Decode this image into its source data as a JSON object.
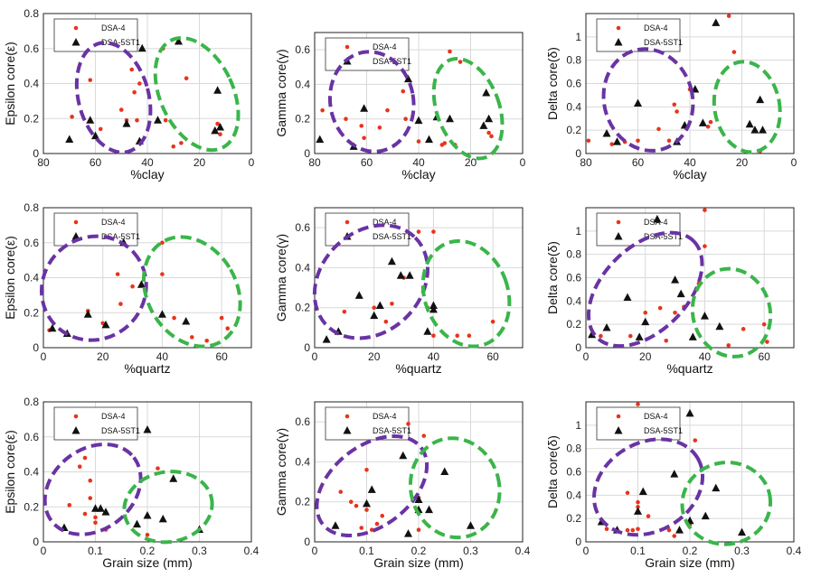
{
  "colors": {
    "series_a": "#e8341c",
    "series_b": "#111111",
    "ellipse_left": "#6a33a3",
    "ellipse_right": "#3ab54a",
    "grid": "#d9d9d9"
  },
  "legend": [
    "DSA-4",
    "DSA-5ST1"
  ],
  "chart_data": [
    {
      "type": "scatter",
      "panel": "1",
      "legend_position": "top-left",
      "xlabel": "%clay",
      "ylabel": "Epsilon core(ε)",
      "xlim": [
        80,
        0
      ],
      "ylim": [
        0,
        0.8
      ],
      "x_reversed": true,
      "xticks": [
        "80",
        "60",
        "40",
        "20",
        "0"
      ],
      "yticks": [
        "0",
        "0.2",
        "0.4",
        "0.6",
        "0.8"
      ],
      "series": [
        {
          "name": "DSA-4",
          "x": [
            69,
            62,
            58,
            50,
            48,
            46,
            45,
            44,
            43,
            34,
            33,
            30,
            27,
            25,
            13,
            12
          ],
          "y": [
            0.21,
            0.42,
            0.14,
            0.25,
            0.19,
            0.48,
            0.35,
            0.19,
            0.4,
            0.6,
            0.19,
            0.04,
            0.06,
            0.43,
            0.17,
            0.11
          ]
        },
        {
          "name": "DSA-5ST1",
          "x": [
            70,
            62,
            60,
            48,
            43,
            42,
            36,
            28,
            14,
            13,
            12
          ],
          "y": [
            0.08,
            0.19,
            0.1,
            0.17,
            0.07,
            0.6,
            0.19,
            0.64,
            0.13,
            0.36,
            0.15
          ]
        }
      ],
      "ellipses": [
        {
          "color": "purple",
          "cx": 53,
          "cy": 0.32,
          "rx": 13.5,
          "ry": 0.32,
          "angle_deg": -15
        },
        {
          "color": "green",
          "cx": 21,
          "cy": 0.34,
          "rx": 14,
          "ry": 0.34,
          "angle_deg": -25
        }
      ]
    },
    {
      "type": "scatter",
      "panel": "2",
      "legend_position": "top-left",
      "xlabel": "%clay",
      "ylabel": "Gamma core(γ)",
      "xlim": [
        80,
        0
      ],
      "ylim": [
        0,
        0.7
      ],
      "x_reversed": true,
      "xticks": [
        "80",
        "60",
        "40",
        "20",
        "0"
      ],
      "yticks": [
        "0",
        "0.2",
        "0.4",
        "0.6"
      ],
      "series": [
        {
          "name": "DSA-4",
          "x": [
            77,
            68,
            62,
            61,
            55,
            52,
            46,
            45,
            40,
            31,
            30,
            28,
            26,
            24,
            13,
            12
          ],
          "y": [
            0.25,
            0.2,
            0.16,
            0.09,
            0.15,
            0.25,
            0.36,
            0.2,
            0.07,
            0.05,
            0.06,
            0.59,
            0.05,
            0.53,
            0.12,
            0.1
          ]
        },
        {
          "name": "DSA-5ST1",
          "x": [
            78,
            65,
            61,
            44,
            40,
            36,
            33,
            28,
            15,
            14,
            13
          ],
          "y": [
            0.08,
            0.04,
            0.26,
            0.43,
            0.19,
            0.08,
            0.21,
            0.2,
            0.16,
            0.35,
            0.2
          ]
        }
      ],
      "ellipses": [
        {
          "color": "purple",
          "cx": 58,
          "cy": 0.3,
          "rx": 16,
          "ry": 0.29,
          "angle_deg": -10
        },
        {
          "color": "green",
          "cx": 21,
          "cy": 0.26,
          "rx": 12,
          "ry": 0.3,
          "angle_deg": -20
        }
      ]
    },
    {
      "type": "scatter",
      "panel": "3",
      "legend_position": "top-left",
      "xlabel": "%clay",
      "ylabel": "Delta core(δ)",
      "xlim": [
        80,
        0
      ],
      "ylim": [
        0,
        1.2
      ],
      "x_reversed": true,
      "xticks": [
        "80",
        "60",
        "40",
        "20",
        "0"
      ],
      "yticks": [
        "0",
        "0.2",
        "0.4",
        "0.6",
        "0.8",
        "1"
      ],
      "series": [
        {
          "name": "DSA-4",
          "x": [
            79,
            70,
            65,
            60,
            52,
            48,
            46,
            45,
            40,
            33,
            32,
            25,
            23,
            13
          ],
          "y": [
            0.11,
            0.08,
            0.1,
            0.11,
            0.21,
            0.11,
            0.42,
            0.36,
            0.55,
            0.23,
            0.27,
            1.18,
            0.87,
            0.02
          ]
        },
        {
          "name": "DSA-5ST1",
          "x": [
            72,
            68,
            60,
            45,
            42,
            38,
            35,
            30,
            17,
            15,
            13,
            12
          ],
          "y": [
            0.17,
            0.1,
            0.43,
            0.1,
            0.24,
            0.55,
            0.26,
            1.12,
            0.25,
            0.2,
            0.46,
            0.2
          ]
        }
      ],
      "ellipses": [
        {
          "color": "purple",
          "cx": 56,
          "cy": 0.46,
          "rx": 17,
          "ry": 0.44,
          "angle_deg": -15
        },
        {
          "color": "green",
          "cx": 18,
          "cy": 0.4,
          "rx": 12.5,
          "ry": 0.39,
          "angle_deg": -10
        }
      ]
    },
    {
      "type": "scatter",
      "panel": "4",
      "legend_position": "top-left",
      "xlabel": "%quartz",
      "ylabel": "Epsilon core(ε)",
      "xlim": [
        0,
        70
      ],
      "ylim": [
        0,
        0.8
      ],
      "xticks": [
        "0",
        "20",
        "40",
        "60"
      ],
      "yticks": [
        "0",
        "0.2",
        "0.4",
        "0.6",
        "0.8"
      ],
      "series": [
        {
          "name": "DSA-4",
          "x": [
            2,
            15,
            20,
            25,
            26,
            30,
            40,
            40,
            44,
            50,
            55,
            60,
            62
          ],
          "y": [
            0.1,
            0.21,
            0.14,
            0.42,
            0.25,
            0.35,
            0.6,
            0.42,
            0.17,
            0.06,
            0.04,
            0.17,
            0.11
          ]
        },
        {
          "name": "DSA-5ST1",
          "x": [
            3,
            8,
            15,
            21,
            27,
            33,
            40,
            48
          ],
          "y": [
            0.11,
            0.08,
            0.19,
            0.13,
            0.6,
            0.36,
            0.19,
            0.15
          ]
        }
      ],
      "ellipses": [
        {
          "color": "purple",
          "cx": 17,
          "cy": 0.34,
          "rx": 18,
          "ry": 0.29,
          "angle_deg": -42
        },
        {
          "color": "green",
          "cx": 50,
          "cy": 0.32,
          "rx": 15,
          "ry": 0.33,
          "angle_deg": -30
        }
      ]
    },
    {
      "type": "scatter",
      "panel": "5",
      "legend_position": "top-left",
      "xlabel": "%quartz",
      "ylabel": "Gamma core(γ)",
      "xlim": [
        0,
        70
      ],
      "ylim": [
        0,
        0.7
      ],
      "xticks": [
        "0",
        "20",
        "40",
        "60"
      ],
      "yticks": [
        "0",
        "0.2",
        "0.4",
        "0.6"
      ],
      "series": [
        {
          "name": "DSA-4",
          "x": [
            10,
            15,
            20,
            24,
            26,
            30,
            35,
            38,
            40,
            40,
            48,
            52,
            60
          ],
          "y": [
            0.18,
            0.26,
            0.2,
            0.13,
            0.22,
            0.35,
            0.58,
            0.2,
            0.58,
            0.06,
            0.06,
            0.06,
            0.13
          ]
        },
        {
          "name": "DSA-5ST1",
          "x": [
            4,
            8,
            15,
            20,
            22,
            26,
            29,
            32,
            38,
            40,
            40
          ],
          "y": [
            0.04,
            0.08,
            0.26,
            0.16,
            0.21,
            0.43,
            0.36,
            0.36,
            0.08,
            0.19,
            0.21
          ]
        }
      ],
      "ellipses": [
        {
          "color": "purple",
          "cx": 19,
          "cy": 0.33,
          "rx": 21,
          "ry": 0.25,
          "angle_deg": -45
        },
        {
          "color": "green",
          "cx": 51,
          "cy": 0.27,
          "rx": 14,
          "ry": 0.27,
          "angle_deg": -20
        }
      ]
    },
    {
      "type": "scatter",
      "panel": "6",
      "legend_position": "top-left",
      "xlabel": "%quartz",
      "ylabel": "Delta core(δ)",
      "xlim": [
        0,
        70
      ],
      "ylim": [
        0,
        1.2
      ],
      "xticks": [
        "0",
        "20",
        "40",
        "60"
      ],
      "yticks": [
        "0",
        "0.2",
        "0.4",
        "0.6",
        "0.8",
        "1"
      ],
      "series": [
        {
          "name": "DSA-4",
          "x": [
            5,
            15,
            20,
            25,
            27,
            30,
            33,
            38,
            40,
            40,
            48,
            53,
            60,
            61
          ],
          "y": [
            0.1,
            0.1,
            0.3,
            0.34,
            0.06,
            0.3,
            0.35,
            0.55,
            1.18,
            0.87,
            0.02,
            0.16,
            0.2,
            0.05
          ]
        },
        {
          "name": "DSA-5ST1",
          "x": [
            2,
            7,
            14,
            18,
            20,
            24,
            30,
            32,
            36,
            40,
            45
          ],
          "y": [
            0.11,
            0.17,
            0.43,
            0.09,
            0.22,
            1.1,
            0.58,
            0.46,
            0.09,
            0.27,
            0.18
          ]
        }
      ],
      "ellipses": [
        {
          "color": "purple",
          "cx": 20,
          "cy": 0.5,
          "rx": 23,
          "ry": 0.36,
          "angle_deg": -45
        },
        {
          "color": "green",
          "cx": 49,
          "cy": 0.3,
          "rx": 13,
          "ry": 0.38,
          "angle_deg": -15
        }
      ]
    },
    {
      "type": "scatter",
      "panel": "7",
      "legend_position": "top-left",
      "xlabel": "Grain size (mm)",
      "ylabel": "Epsilon core(ε)",
      "xlim": [
        0,
        0.4
      ],
      "ylim": [
        0,
        0.8
      ],
      "xticks": [
        "0",
        "0.1",
        "0.2",
        "0.3",
        "0.4"
      ],
      "yticks": [
        "0",
        "0.2",
        "0.4",
        "0.6",
        "0.8"
      ],
      "series": [
        {
          "name": "DSA-4",
          "x": [
            0.05,
            0.07,
            0.08,
            0.08,
            0.09,
            0.09,
            0.1,
            0.1,
            0.1,
            0.12,
            0.2,
            0.22
          ],
          "y": [
            0.21,
            0.43,
            0.48,
            0.16,
            0.35,
            0.25,
            0.19,
            0.14,
            0.11,
            0.07,
            0.04,
            0.42
          ]
        },
        {
          "name": "DSA-5ST1",
          "x": [
            0.04,
            0.1,
            0.11,
            0.12,
            0.18,
            0.2,
            0.2,
            0.23,
            0.25,
            0.3
          ],
          "y": [
            0.08,
            0.19,
            0.19,
            0.17,
            0.1,
            0.64,
            0.15,
            0.13,
            0.36,
            0.07
          ]
        }
      ],
      "ellipses": [
        {
          "color": "purple",
          "cx": 0.095,
          "cy": 0.3,
          "rx": 0.1,
          "ry": 0.23,
          "angle_deg": -38
        },
        {
          "color": "green",
          "cx": 0.24,
          "cy": 0.2,
          "rx": 0.085,
          "ry": 0.2,
          "angle_deg": -10
        }
      ]
    },
    {
      "type": "scatter",
      "panel": "8",
      "legend_position": "top-left",
      "xlabel": "Grain size (mm)",
      "ylabel": "Gamma core(γ)",
      "xlim": [
        0,
        0.4
      ],
      "ylim": [
        0,
        0.7
      ],
      "xticks": [
        "0",
        "0.1",
        "0.2",
        "0.3",
        "0.4"
      ],
      "yticks": [
        "0",
        "0.2",
        "0.4",
        "0.6"
      ],
      "series": [
        {
          "name": "DSA-4",
          "x": [
            0.05,
            0.07,
            0.08,
            0.09,
            0.1,
            0.1,
            0.11,
            0.12,
            0.13,
            0.18,
            0.2,
            0.2,
            0.21
          ],
          "y": [
            0.25,
            0.2,
            0.18,
            0.07,
            0.36,
            0.16,
            0.06,
            0.09,
            0.13,
            0.59,
            0.22,
            0.06,
            0.53
          ]
        },
        {
          "name": "DSA-5ST1",
          "x": [
            0.04,
            0.1,
            0.11,
            0.17,
            0.18,
            0.2,
            0.2,
            0.22,
            0.25,
            0.3
          ],
          "y": [
            0.08,
            0.19,
            0.26,
            0.43,
            0.04,
            0.21,
            0.16,
            0.16,
            0.35,
            0.08
          ]
        }
      ],
      "ellipses": [
        {
          "color": "purple",
          "cx": 0.11,
          "cy": 0.28,
          "rx": 0.12,
          "ry": 0.2,
          "angle_deg": -38
        },
        {
          "color": "green",
          "cx": 0.27,
          "cy": 0.27,
          "rx": 0.085,
          "ry": 0.25,
          "angle_deg": -15
        }
      ]
    },
    {
      "type": "scatter",
      "panel": "9",
      "legend_position": "top-left",
      "xlabel": "Grain size (mm)",
      "ylabel": "Delta core(δ)",
      "xlim": [
        0,
        0.4
      ],
      "ylim": [
        0,
        1.2
      ],
      "xticks": [
        "0",
        "0.1",
        "0.2",
        "0.3",
        "0.4"
      ],
      "yticks": [
        "0",
        "0.2",
        "0.4",
        "0.6",
        "0.8",
        "1"
      ],
      "series": [
        {
          "name": "DSA-4",
          "x": [
            0.04,
            0.08,
            0.08,
            0.09,
            0.1,
            0.1,
            0.1,
            0.1,
            0.12,
            0.16,
            0.17,
            0.2,
            0.21
          ],
          "y": [
            0.11,
            0.42,
            0.1,
            0.1,
            1.18,
            0.34,
            0.3,
            0.11,
            0.22,
            0.1,
            0.05,
            0.15,
            0.87
          ]
        },
        {
          "name": "DSA-5ST1",
          "x": [
            0.03,
            0.06,
            0.1,
            0.11,
            0.17,
            0.18,
            0.2,
            0.2,
            0.23,
            0.25,
            0.3
          ],
          "y": [
            0.17,
            0.1,
            0.26,
            0.43,
            0.58,
            0.1,
            1.1,
            0.18,
            0.22,
            0.46,
            0.08
          ]
        }
      ],
      "ellipses": [
        {
          "color": "purple",
          "cx": 0.12,
          "cy": 0.47,
          "rx": 0.11,
          "ry": 0.38,
          "angle_deg": -30
        },
        {
          "color": "green",
          "cx": 0.27,
          "cy": 0.33,
          "rx": 0.085,
          "ry": 0.35,
          "angle_deg": -10
        }
      ]
    }
  ]
}
